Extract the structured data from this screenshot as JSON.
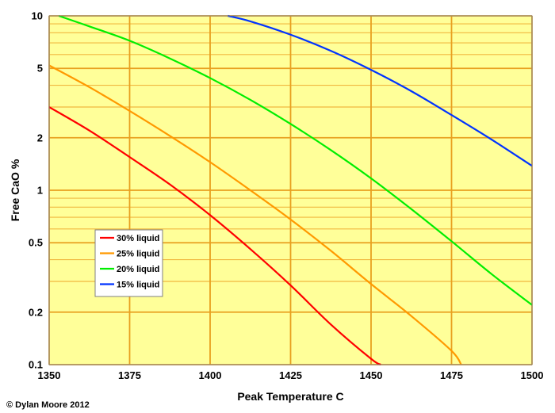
{
  "colors": {
    "plot_background": "#ffff99",
    "grid_major": "#e8a020",
    "grid_minor": "#f0b840",
    "frame": "#808080"
  },
  "credit": "© Dylan Moore 2012",
  "chart_data": {
    "type": "line",
    "title": "",
    "xlabel": "Peak Temperature C",
    "ylabel": "Free CaO %",
    "xlim": [
      1350,
      1500
    ],
    "ylim": [
      0.1,
      10
    ],
    "yscale": "log",
    "grid": true,
    "legend_position": "left-center",
    "x_ticks": [
      1350,
      1375,
      1400,
      1425,
      1450,
      1475,
      1500
    ],
    "x_tick_labels": [
      "1350",
      "1375",
      "1400",
      "1425",
      "1450",
      "1475",
      "1500"
    ],
    "y_ticks": [
      0.1,
      0.2,
      0.5,
      1,
      2,
      5,
      10
    ],
    "y_tick_labels": [
      "0.1",
      "0.2",
      "0.5",
      "1",
      "2",
      "5",
      "10"
    ],
    "y_minor_gridlines": [
      0.3,
      0.4,
      0.6,
      0.7,
      0.8,
      0.9,
      3,
      4,
      6,
      7,
      8,
      9
    ],
    "series": [
      {
        "name": "30% liquid",
        "color": "#ff0000",
        "x": [
          1350,
          1362.5,
          1375,
          1387.5,
          1400,
          1412.5,
          1425,
          1437.5,
          1450,
          1453
        ],
        "y": [
          3.0,
          2.2,
          1.55,
          1.08,
          0.72,
          0.46,
          0.285,
          0.17,
          0.108,
          0.1
        ]
      },
      {
        "name": "25% liquid",
        "color": "#ff9900",
        "x": [
          1350,
          1362.5,
          1375,
          1387.5,
          1400,
          1412.5,
          1425,
          1437.5,
          1450,
          1462.5,
          1475,
          1478
        ],
        "y": [
          5.2,
          3.9,
          2.85,
          2.05,
          1.45,
          1.0,
          0.68,
          0.45,
          0.29,
          0.19,
          0.12,
          0.1
        ]
      },
      {
        "name": "20% liquid",
        "color": "#00ee00",
        "x": [
          1353,
          1362.5,
          1375,
          1387.5,
          1400,
          1412.5,
          1425,
          1437.5,
          1450,
          1462.5,
          1475,
          1487.5,
          1500
        ],
        "y": [
          10,
          8.7,
          7.2,
          5.7,
          4.4,
          3.3,
          2.4,
          1.7,
          1.17,
          0.78,
          0.51,
          0.33,
          0.22
        ]
      },
      {
        "name": "15% liquid",
        "color": "#0033ff",
        "x": [
          1405.5,
          1412.5,
          1425,
          1437.5,
          1450,
          1462.5,
          1475,
          1487.5,
          1500
        ],
        "y": [
          10,
          9.3,
          7.8,
          6.3,
          4.9,
          3.7,
          2.7,
          1.95,
          1.38
        ]
      }
    ]
  }
}
